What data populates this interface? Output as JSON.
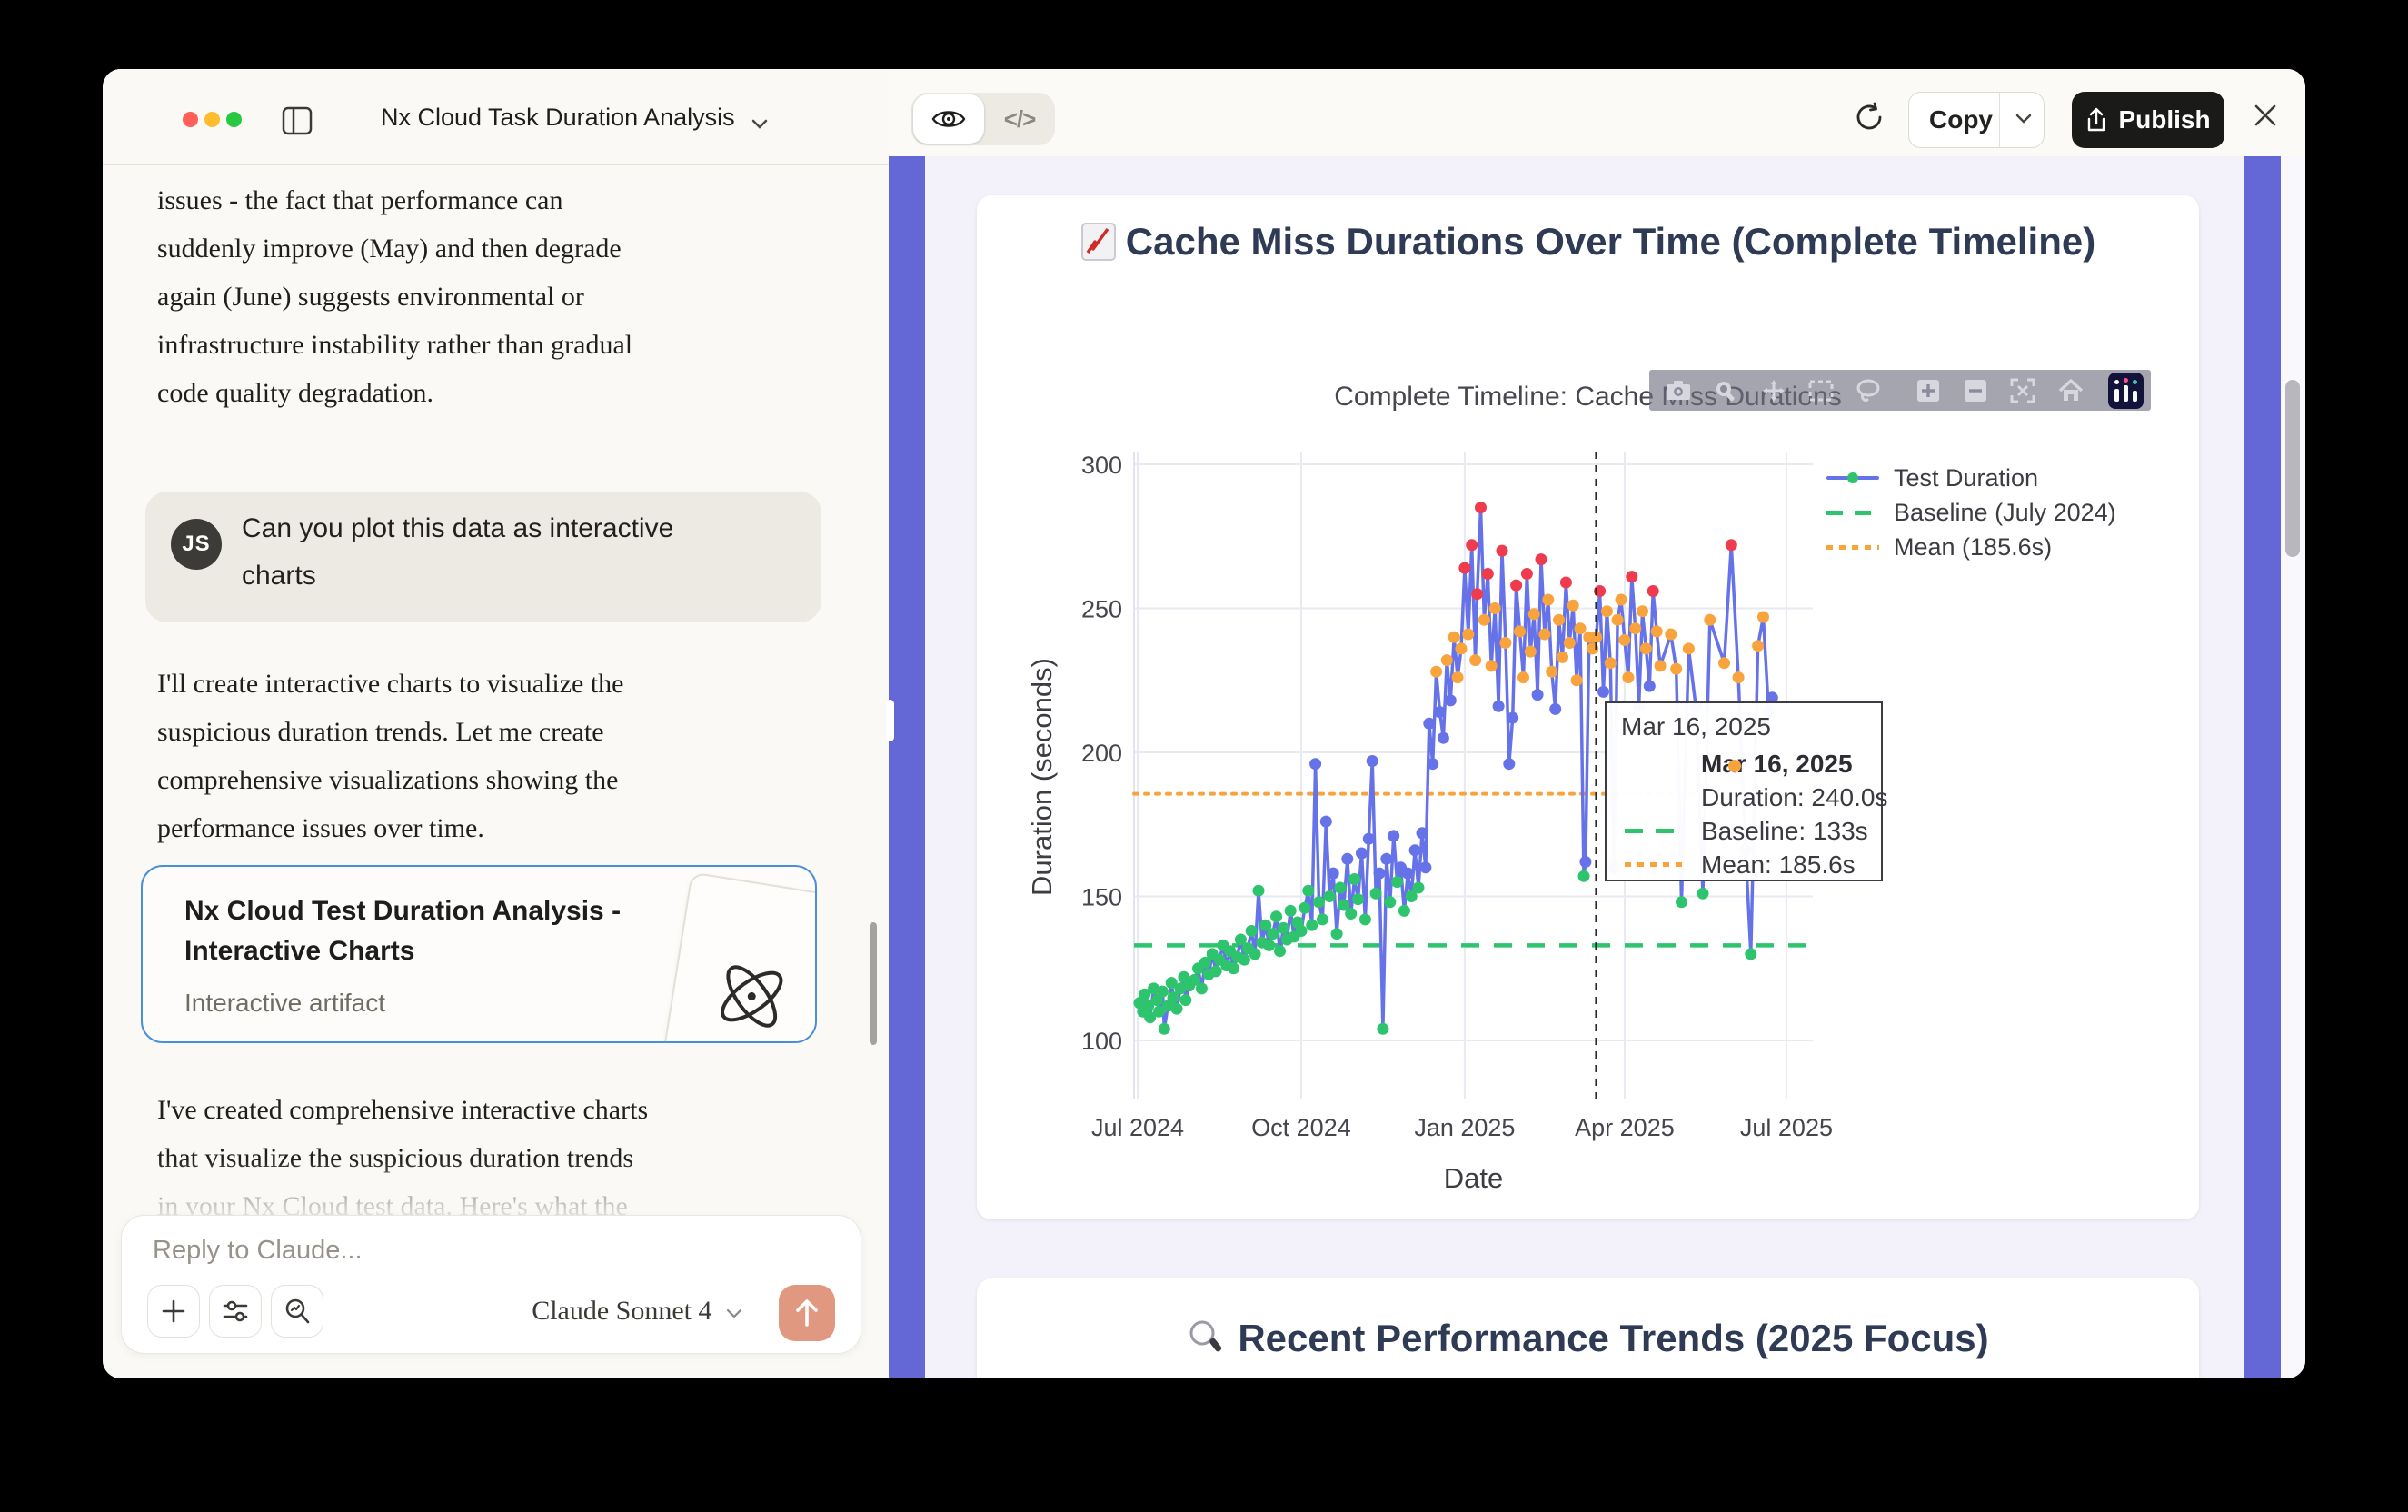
{
  "window": {
    "title": "Nx Cloud Task Duration Analysis"
  },
  "toolbar": {
    "copy_label": "Copy",
    "publish_label": "Publish"
  },
  "chat": {
    "paragraph1": [
      "issues - the fact that performance can",
      "suddenly improve (May) and then degrade",
      "again (June) suggests environmental or",
      "infrastructure instability rather than gradual",
      "code quality degradation."
    ],
    "user_message": {
      "avatar": "JS",
      "line1": "Can you plot this data as interactive",
      "line2": "charts"
    },
    "paragraph2": [
      "I'll create interactive charts to visualize the",
      "suspicious duration trends. Let me create",
      "comprehensive visualizations showing the",
      "performance issues over time."
    ],
    "artifact_card": {
      "title_line1": "Nx Cloud Test Duration Analysis -",
      "title_line2": "Interactive Charts",
      "subtitle": "Interactive artifact",
      "icon": "atom"
    },
    "paragraph3": [
      "I've created comprehensive interactive charts",
      "that visualize the suspicious duration trends",
      "in your Nx Cloud test data. Here's what the"
    ],
    "composer": {
      "placeholder": "Reply to Claude...",
      "model": "Claude Sonnet 4",
      "send_icon": "arrow-up"
    }
  },
  "chart_data": {
    "type": "scatter-line",
    "title": "Cache Miss Durations Over Time (Complete Timeline)",
    "title_icon": "chart-increasing",
    "plot_title": "Complete Timeline: Cache Miss Durations",
    "xlabel": "Date",
    "ylabel": "Duration (seconds)",
    "yticks": [
      100,
      150,
      200,
      250,
      300
    ],
    "xticks": [
      "Jul 2024",
      "Oct 2024",
      "Jan 2025",
      "Apr 2025",
      "Jul 2025"
    ],
    "xtick_days": [
      0,
      92,
      184,
      274,
      365
    ],
    "ylim": [
      80,
      304
    ],
    "grid": true,
    "legend_position": "right-top",
    "legend": [
      "Test Duration",
      "Baseline (July 2024)",
      "Mean (185.6s)"
    ],
    "line_color": "#6673e8",
    "marker_colors": {
      "low": "#2ec46e",
      "mid": "#6673e8",
      "high": "#f9a33c",
      "extreme": "#ee3b4d"
    },
    "marker_thresholds": {
      "green_max": 157,
      "indigo_max": 223,
      "orange_max": 253
    },
    "baseline": {
      "value": 133,
      "color": "#2ec46e"
    },
    "mean": {
      "value": 185.6,
      "color": "#f9a33c"
    },
    "hover_day": 258,
    "tooltip": {
      "header": "Mar 16, 2025",
      "title": "Mar 16, 2025",
      "duration": "Duration: 240.0s",
      "baseline": "Baseline: 133s",
      "mean": "Mean: 185.6s"
    },
    "points": [
      [
        1,
        113
      ],
      [
        3,
        110
      ],
      [
        4,
        116
      ],
      [
        6,
        112
      ],
      [
        7,
        108
      ],
      [
        9,
        118
      ],
      [
        11,
        114
      ],
      [
        12,
        110
      ],
      [
        14,
        117
      ],
      [
        15,
        104
      ],
      [
        17,
        112
      ],
      [
        19,
        120
      ],
      [
        20,
        115
      ],
      [
        22,
        111
      ],
      [
        24,
        118
      ],
      [
        26,
        122
      ],
      [
        27,
        114
      ],
      [
        29,
        119
      ],
      [
        32,
        121
      ],
      [
        34,
        125
      ],
      [
        36,
        118
      ],
      [
        38,
        127
      ],
      [
        40,
        123
      ],
      [
        42,
        130
      ],
      [
        44,
        124
      ],
      [
        46,
        128
      ],
      [
        48,
        133
      ],
      [
        50,
        126
      ],
      [
        52,
        131
      ],
      [
        54,
        125
      ],
      [
        56,
        129
      ],
      [
        58,
        135
      ],
      [
        60,
        128
      ],
      [
        62,
        132
      ],
      [
        64,
        138
      ],
      [
        66,
        130
      ],
      [
        68,
        152
      ],
      [
        70,
        134
      ],
      [
        72,
        140
      ],
      [
        74,
        133
      ],
      [
        76,
        137
      ],
      [
        78,
        143
      ],
      [
        80,
        131
      ],
      [
        82,
        139
      ],
      [
        84,
        135
      ],
      [
        86,
        145
      ],
      [
        88,
        136
      ],
      [
        90,
        141
      ],
      [
        92,
        138
      ],
      [
        94,
        146
      ],
      [
        96,
        152
      ],
      [
        98,
        140
      ],
      [
        100,
        196
      ],
      [
        102,
        148
      ],
      [
        104,
        142
      ],
      [
        106,
        176
      ],
      [
        108,
        150
      ],
      [
        110,
        158
      ],
      [
        112,
        137
      ],
      [
        114,
        153
      ],
      [
        116,
        147
      ],
      [
        118,
        163
      ],
      [
        120,
        144
      ],
      [
        122,
        156
      ],
      [
        124,
        149
      ],
      [
        126,
        165
      ],
      [
        128,
        142
      ],
      [
        130,
        170
      ],
      [
        132,
        197
      ],
      [
        134,
        151
      ],
      [
        136,
        158
      ],
      [
        138,
        104
      ],
      [
        140,
        163
      ],
      [
        142,
        148
      ],
      [
        144,
        171
      ],
      [
        146,
        155
      ],
      [
        148,
        160
      ],
      [
        150,
        145
      ],
      [
        152,
        158
      ],
      [
        154,
        150
      ],
      [
        156,
        166
      ],
      [
        158,
        153
      ],
      [
        160,
        172
      ],
      [
        162,
        160
      ],
      [
        164,
        210
      ],
      [
        166,
        196
      ],
      [
        168,
        228
      ],
      [
        170,
        214
      ],
      [
        172,
        205
      ],
      [
        174,
        232
      ],
      [
        176,
        218
      ],
      [
        178,
        240
      ],
      [
        180,
        226
      ],
      [
        182,
        236
      ],
      [
        184,
        264
      ],
      [
        186,
        241
      ],
      [
        188,
        272
      ],
      [
        190,
        232
      ],
      [
        191,
        255
      ],
      [
        193,
        285
      ],
      [
        195,
        246
      ],
      [
        197,
        262
      ],
      [
        199,
        230
      ],
      [
        201,
        250
      ],
      [
        203,
        216
      ],
      [
        205,
        270
      ],
      [
        207,
        238
      ],
      [
        209,
        196
      ],
      [
        211,
        212
      ],
      [
        213,
        258
      ],
      [
        215,
        242
      ],
      [
        217,
        226
      ],
      [
        219,
        262
      ],
      [
        221,
        235
      ],
      [
        223,
        248
      ],
      [
        225,
        220
      ],
      [
        227,
        267
      ],
      [
        229,
        241
      ],
      [
        231,
        253
      ],
      [
        233,
        228
      ],
      [
        235,
        215
      ],
      [
        237,
        246
      ],
      [
        239,
        233
      ],
      [
        241,
        259
      ],
      [
        243,
        238
      ],
      [
        245,
        251
      ],
      [
        247,
        225
      ],
      [
        249,
        243
      ],
      [
        251,
        157
      ],
      [
        252,
        162
      ],
      [
        254,
        240
      ],
      [
        256,
        236
      ],
      [
        258,
        240
      ],
      [
        260,
        256
      ],
      [
        262,
        221
      ],
      [
        264,
        249
      ],
      [
        266,
        231
      ],
      [
        268,
        160
      ],
      [
        270,
        246
      ],
      [
        272,
        253
      ],
      [
        274,
        239
      ],
      [
        276,
        226
      ],
      [
        278,
        261
      ],
      [
        280,
        243
      ],
      [
        282,
        216
      ],
      [
        284,
        249
      ],
      [
        286,
        236
      ],
      [
        288,
        223
      ],
      [
        290,
        256
      ],
      [
        292,
        242
      ],
      [
        294,
        230
      ],
      [
        300,
        241
      ],
      [
        303,
        229
      ],
      [
        306,
        148
      ],
      [
        310,
        236
      ],
      [
        314,
        216
      ],
      [
        318,
        151
      ],
      [
        322,
        246
      ],
      [
        330,
        231
      ],
      [
        334,
        272
      ],
      [
        338,
        226
      ],
      [
        342,
        166
      ],
      [
        345,
        130
      ],
      [
        349,
        237
      ],
      [
        352,
        247
      ],
      [
        355,
        214
      ],
      [
        357,
        219
      ]
    ]
  },
  "section2": {
    "title": "Recent Performance Trends (2025 Focus)",
    "title_icon": "magnifier"
  }
}
